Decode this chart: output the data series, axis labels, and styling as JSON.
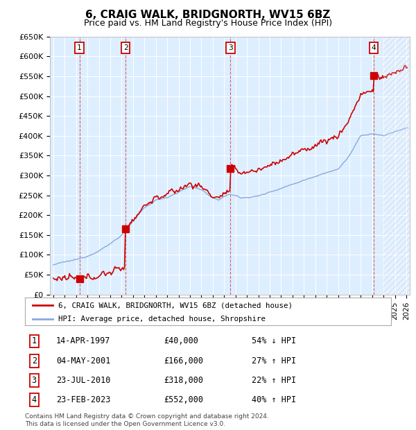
{
  "title": "6, CRAIG WALK, BRIDGNORTH, WV15 6BZ",
  "subtitle": "Price paid vs. HM Land Registry's House Price Index (HPI)",
  "ylim": [
    0,
    650000
  ],
  "yticks": [
    0,
    50000,
    100000,
    150000,
    200000,
    250000,
    300000,
    350000,
    400000,
    450000,
    500000,
    550000,
    600000,
    650000
  ],
  "ytick_labels": [
    "£0",
    "£50K",
    "£100K",
    "£150K",
    "£200K",
    "£250K",
    "£300K",
    "£350K",
    "£400K",
    "£450K",
    "£500K",
    "£550K",
    "£600K",
    "£650K"
  ],
  "xlim_start": 1994.7,
  "xlim_end": 2026.3,
  "sale_years": [
    1997.29,
    2001.34,
    2010.56,
    2023.15
  ],
  "sale_prices": [
    40000,
    166000,
    318000,
    552000
  ],
  "sale_labels": [
    "1",
    "2",
    "3",
    "4"
  ],
  "sale_dates": [
    "14-APR-1997",
    "04-MAY-2001",
    "23-JUL-2010",
    "23-FEB-2023"
  ],
  "sale_price_strs": [
    "£40,000",
    "£166,000",
    "£318,000",
    "£552,000"
  ],
  "sale_hpi_strs": [
    "54% ↓ HPI",
    "27% ↑ HPI",
    "22% ↑ HPI",
    "40% ↑ HPI"
  ],
  "property_line_color": "#cc0000",
  "hpi_line_color": "#88aadd",
  "background_color": "#ddeeff",
  "plot_bg": "#ffffff",
  "grid_color": "#ffffff",
  "legend_label_property": "6, CRAIG WALK, BRIDGNORTH, WV15 6BZ (detached house)",
  "legend_label_hpi": "HPI: Average price, detached house, Shropshire",
  "footnote": "Contains HM Land Registry data © Crown copyright and database right 2024.\nThis data is licensed under the Open Government Licence v3.0.",
  "future_start": 2024.0,
  "title_fontsize": 11,
  "subtitle_fontsize": 9
}
